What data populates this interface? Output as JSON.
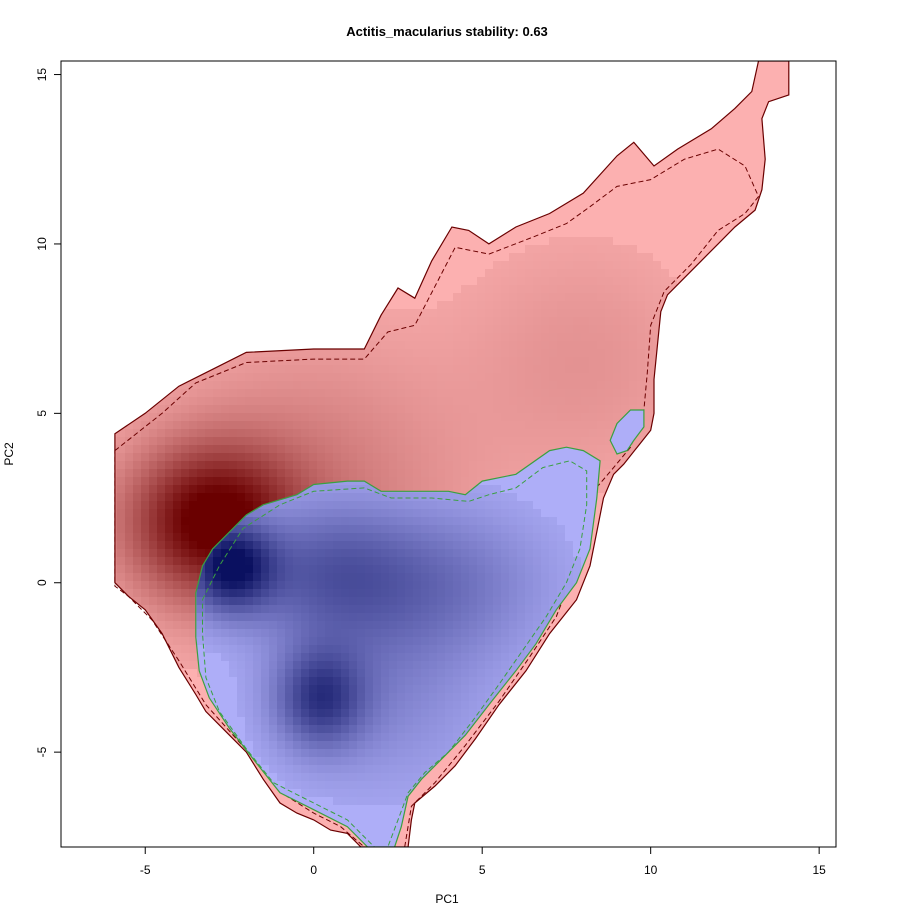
{
  "chart_data": {
    "type": "contour-density",
    "title": "Actitis_macularius stability: 0.63",
    "xlabel": "PC1",
    "ylabel": "PC2",
    "xlim": [
      -7.5,
      15.5
    ],
    "ylim": [
      -7.8,
      15.4
    ],
    "xticks": [
      -5,
      0,
      5,
      10,
      15
    ],
    "yticks": [
      -5,
      0,
      5,
      10,
      15
    ],
    "grid": false,
    "colors": {
      "red_fill": "#fcb0b0",
      "red_dark": "#6a0000",
      "blue_fill": "#aeaef8",
      "blue_dark": "#0a1060",
      "red_outline": "#6a0000",
      "green_outline": "#3aa040"
    },
    "series": [
      {
        "key": "red",
        "peak": [
          -3.0,
          1.8
        ],
        "outline": [
          [
            -5.9,
            4.4
          ],
          [
            -5.0,
            5.0
          ],
          [
            -4.0,
            5.8
          ],
          [
            -3.0,
            6.3
          ],
          [
            -2.0,
            6.8
          ],
          [
            0.0,
            6.9
          ],
          [
            1.5,
            6.9
          ],
          [
            2.0,
            7.9
          ],
          [
            2.5,
            8.7
          ],
          [
            3.0,
            8.4
          ],
          [
            3.5,
            9.5
          ],
          [
            4.1,
            10.5
          ],
          [
            4.6,
            10.4
          ],
          [
            5.2,
            10.0
          ],
          [
            6.0,
            10.5
          ],
          [
            7.0,
            10.9
          ],
          [
            8.0,
            11.5
          ],
          [
            9.0,
            12.6
          ],
          [
            9.5,
            13.0
          ],
          [
            10.1,
            12.3
          ],
          [
            10.8,
            12.8
          ],
          [
            11.8,
            13.4
          ],
          [
            12.5,
            14.0
          ],
          [
            13.0,
            14.5
          ],
          [
            13.2,
            15.4
          ],
          [
            14.1,
            15.4
          ],
          [
            14.1,
            14.4
          ],
          [
            13.5,
            14.2
          ],
          [
            13.3,
            13.7
          ],
          [
            13.4,
            12.5
          ],
          [
            13.3,
            11.6
          ],
          [
            13.1,
            11.0
          ],
          [
            12.5,
            10.5
          ],
          [
            12.0,
            10.0
          ],
          [
            11.5,
            9.5
          ],
          [
            11.0,
            9.0
          ],
          [
            10.5,
            8.5
          ],
          [
            10.3,
            8.0
          ],
          [
            10.2,
            7.0
          ],
          [
            10.1,
            6.0
          ],
          [
            10.1,
            5.0
          ],
          [
            10.0,
            4.5
          ],
          [
            9.6,
            4.0
          ],
          [
            9.2,
            3.5
          ],
          [
            8.9,
            3.2
          ],
          [
            8.6,
            2.5
          ],
          [
            8.4,
            1.5
          ],
          [
            8.2,
            0.5
          ],
          [
            7.8,
            -0.5
          ],
          [
            7.4,
            -1.0
          ],
          [
            7.0,
            -1.5
          ],
          [
            6.3,
            -2.6
          ],
          [
            5.5,
            -3.6
          ],
          [
            4.8,
            -4.6
          ],
          [
            4.2,
            -5.4
          ],
          [
            3.6,
            -6.0
          ],
          [
            3.0,
            -6.5
          ],
          [
            2.9,
            -7.0
          ],
          [
            2.8,
            -7.8
          ],
          [
            1.4,
            -7.8
          ],
          [
            1.0,
            -7.4
          ],
          [
            0.5,
            -7.3
          ],
          [
            0.0,
            -7.0
          ],
          [
            -0.5,
            -6.8
          ],
          [
            -1.0,
            -6.5
          ],
          [
            -1.5,
            -5.8
          ],
          [
            -2.0,
            -5.0
          ],
          [
            -2.6,
            -4.4
          ],
          [
            -3.2,
            -3.8
          ],
          [
            -3.5,
            -3.3
          ],
          [
            -4.0,
            -2.5
          ],
          [
            -4.5,
            -1.5
          ],
          [
            -5.0,
            -0.8
          ],
          [
            -5.5,
            -0.4
          ],
          [
            -5.9,
            0.0
          ]
        ],
        "inner": [
          [
            -5.9,
            3.9
          ],
          [
            -4.5,
            5.0
          ],
          [
            -3.5,
            5.9
          ],
          [
            -2.0,
            6.5
          ],
          [
            0.0,
            6.6
          ],
          [
            1.5,
            6.6
          ],
          [
            2.2,
            7.4
          ],
          [
            3.0,
            7.6
          ],
          [
            4.2,
            9.9
          ],
          [
            5.2,
            9.7
          ],
          [
            6.5,
            10.2
          ],
          [
            7.5,
            10.6
          ],
          [
            8.2,
            11.1
          ],
          [
            9.0,
            11.7
          ],
          [
            10.0,
            11.9
          ],
          [
            11.0,
            12.5
          ],
          [
            12.0,
            12.8
          ],
          [
            12.8,
            12.3
          ],
          [
            13.2,
            11.4
          ],
          [
            12.8,
            10.9
          ],
          [
            12.0,
            10.4
          ],
          [
            11.2,
            9.4
          ],
          [
            10.4,
            8.6
          ],
          [
            10.0,
            7.6
          ],
          [
            9.9,
            6.2
          ],
          [
            9.8,
            5.1
          ],
          [
            9.4,
            4.0
          ],
          [
            8.9,
            3.4
          ],
          [
            8.3,
            2.7
          ],
          [
            8.0,
            1.5
          ],
          [
            7.7,
            0.3
          ],
          [
            7.2,
            -1.0
          ],
          [
            6.4,
            -2.2
          ],
          [
            5.5,
            -3.5
          ],
          [
            4.5,
            -4.8
          ],
          [
            3.6,
            -5.9
          ],
          [
            2.9,
            -6.6
          ],
          [
            2.7,
            -7.8
          ],
          [
            1.5,
            -7.8
          ],
          [
            0.8,
            -7.2
          ],
          [
            0.0,
            -6.8
          ],
          [
            -0.8,
            -6.3
          ],
          [
            -1.5,
            -5.5
          ],
          [
            -2.3,
            -4.6
          ],
          [
            -3.2,
            -3.6
          ],
          [
            -4.0,
            -2.3
          ],
          [
            -4.8,
            -1.1
          ],
          [
            -5.5,
            -0.4
          ],
          [
            -5.9,
            -0.1
          ]
        ],
        "modes": [
          {
            "x": -3.0,
            "y": 1.8,
            "sx": 1.7,
            "sy": 1.5,
            "w": 1.0
          },
          {
            "x": 0.0,
            "y": 2.5,
            "sx": 3.0,
            "sy": 3.0,
            "w": 0.25
          },
          {
            "x": 8.0,
            "y": 6.5,
            "sx": 2.5,
            "sy": 2.5,
            "w": 0.12
          }
        ]
      },
      {
        "key": "blue",
        "peak": [
          -2.5,
          0.5
        ],
        "outline": [
          [
            -3.5,
            -0.3
          ],
          [
            -3.3,
            0.5
          ],
          [
            -3.0,
            1.0
          ],
          [
            -2.5,
            1.5
          ],
          [
            -2.0,
            2.0
          ],
          [
            -1.5,
            2.3
          ],
          [
            -0.5,
            2.6
          ],
          [
            0.0,
            2.9
          ],
          [
            1.0,
            3.0
          ],
          [
            1.5,
            3.0
          ],
          [
            2.0,
            2.7
          ],
          [
            3.0,
            2.7
          ],
          [
            4.0,
            2.7
          ],
          [
            4.5,
            2.6
          ],
          [
            5.0,
            3.0
          ],
          [
            6.0,
            3.2
          ],
          [
            7.0,
            3.9
          ],
          [
            7.5,
            4.0
          ],
          [
            8.0,
            3.9
          ],
          [
            8.5,
            3.6
          ],
          [
            8.4,
            2.5
          ],
          [
            8.2,
            1.0
          ],
          [
            7.8,
            0.0
          ],
          [
            7.2,
            -0.8
          ],
          [
            6.6,
            -1.8
          ],
          [
            6.0,
            -2.6
          ],
          [
            5.2,
            -3.6
          ],
          [
            4.5,
            -4.5
          ],
          [
            3.7,
            -5.3
          ],
          [
            3.2,
            -5.8
          ],
          [
            2.8,
            -6.3
          ],
          [
            2.6,
            -7.2
          ],
          [
            2.4,
            -7.8
          ],
          [
            1.6,
            -7.8
          ],
          [
            1.0,
            -7.2
          ],
          [
            0.0,
            -6.7
          ],
          [
            -1.0,
            -6.2
          ],
          [
            -1.8,
            -5.2
          ],
          [
            -2.5,
            -4.3
          ],
          [
            -3.1,
            -3.4
          ],
          [
            -3.4,
            -2.6
          ],
          [
            -3.5,
            -1.6
          ],
          [
            -3.5,
            -0.6
          ]
        ],
        "inner": [
          [
            -3.3,
            -0.5
          ],
          [
            -2.8,
            0.5
          ],
          [
            -2.1,
            1.6
          ],
          [
            -1.0,
            2.3
          ],
          [
            0.0,
            2.7
          ],
          [
            1.5,
            2.8
          ],
          [
            2.3,
            2.5
          ],
          [
            3.5,
            2.5
          ],
          [
            4.6,
            2.4
          ],
          [
            5.2,
            2.6
          ],
          [
            6.0,
            2.8
          ],
          [
            6.8,
            3.4
          ],
          [
            7.6,
            3.6
          ],
          [
            8.1,
            3.3
          ],
          [
            8.1,
            2.3
          ],
          [
            7.9,
            1.0
          ],
          [
            7.5,
            0.0
          ],
          [
            6.9,
            -1.0
          ],
          [
            6.2,
            -2.0
          ],
          [
            5.5,
            -3.0
          ],
          [
            4.7,
            -4.1
          ],
          [
            4.0,
            -5.0
          ],
          [
            3.3,
            -5.6
          ],
          [
            2.8,
            -6.2
          ],
          [
            2.5,
            -7.0
          ],
          [
            2.2,
            -7.8
          ],
          [
            1.8,
            -7.8
          ],
          [
            1.0,
            -7.0
          ],
          [
            0.0,
            -6.5
          ],
          [
            -1.2,
            -5.9
          ],
          [
            -2.0,
            -4.9
          ],
          [
            -2.8,
            -3.8
          ],
          [
            -3.2,
            -2.8
          ],
          [
            -3.3,
            -1.5
          ]
        ],
        "island": [
          [
            8.8,
            4.2
          ],
          [
            9.0,
            4.7
          ],
          [
            9.4,
            5.1
          ],
          [
            9.8,
            5.1
          ],
          [
            9.8,
            4.6
          ],
          [
            9.5,
            4.2
          ],
          [
            9.3,
            3.9
          ],
          [
            9.0,
            3.8
          ]
        ],
        "modes": [
          {
            "x": -2.5,
            "y": 0.5,
            "sx": 0.9,
            "sy": 0.9,
            "w": 1.0
          },
          {
            "x": 0.2,
            "y": -3.4,
            "sx": 0.9,
            "sy": 1.0,
            "w": 0.65
          },
          {
            "x": 0.5,
            "y": 0.3,
            "sx": 1.8,
            "sy": 1.4,
            "w": 0.45
          },
          {
            "x": 4.0,
            "y": 0.0,
            "sx": 2.0,
            "sy": 1.5,
            "w": 0.28
          },
          {
            "x": 2.0,
            "y": -3.0,
            "sx": 2.0,
            "sy": 2.0,
            "w": 0.2
          }
        ]
      }
    ]
  }
}
